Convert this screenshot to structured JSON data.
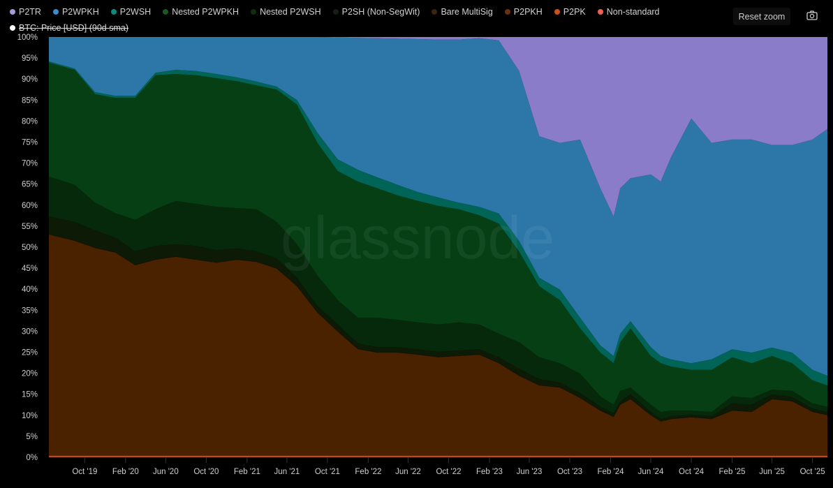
{
  "toolbar": {
    "reset_zoom_label": "Reset zoom",
    "camera_icon": "camera-icon"
  },
  "overlay_legend": {
    "label": "BTC: Price [USD] (90d sma)",
    "color": "#ffffff",
    "hidden": true
  },
  "chart_data": {
    "type": "area",
    "stacked": true,
    "watermark": "glassnode",
    "ylim": [
      0,
      100
    ],
    "y_ticks": [
      "0%",
      "5%",
      "10%",
      "15%",
      "20%",
      "25%",
      "30%",
      "35%",
      "40%",
      "45%",
      "50%",
      "55%",
      "60%",
      "65%",
      "70%",
      "75%",
      "80%",
      "85%",
      "90%",
      "95%",
      "100%"
    ],
    "x_range": [
      "2019-06-15",
      "2025-11-15"
    ],
    "x_ticks": [
      {
        "date": "2019-10-01",
        "label": "Oct '19"
      },
      {
        "date": "2020-02-01",
        "label": "Feb '20"
      },
      {
        "date": "2020-06-01",
        "label": "Jun '20"
      },
      {
        "date": "2020-10-01",
        "label": "Oct '20"
      },
      {
        "date": "2021-02-01",
        "label": "Feb '21"
      },
      {
        "date": "2021-06-01",
        "label": "Jun '21"
      },
      {
        "date": "2021-10-01",
        "label": "Oct '21"
      },
      {
        "date": "2022-02-01",
        "label": "Feb '22"
      },
      {
        "date": "2022-06-01",
        "label": "Jun '22"
      },
      {
        "date": "2022-10-01",
        "label": "Oct '22"
      },
      {
        "date": "2023-02-01",
        "label": "Feb '23"
      },
      {
        "date": "2023-06-01",
        "label": "Jun '23"
      },
      {
        "date": "2023-10-01",
        "label": "Oct '23"
      },
      {
        "date": "2024-02-01",
        "label": "Feb '24"
      },
      {
        "date": "2024-06-01",
        "label": "Jun '24"
      },
      {
        "date": "2024-10-01",
        "label": "Oct '24"
      },
      {
        "date": "2025-02-01",
        "label": "Feb '25"
      },
      {
        "date": "2025-06-01",
        "label": "Jun '25"
      },
      {
        "date": "2025-10-01",
        "label": "Oct '25"
      }
    ],
    "grid": false,
    "legend_position": "top-left",
    "x": [
      "2019-06-15",
      "2019-09-01",
      "2019-11-01",
      "2020-01-01",
      "2020-03-01",
      "2020-05-01",
      "2020-07-01",
      "2020-09-01",
      "2020-11-01",
      "2021-01-01",
      "2021-03-01",
      "2021-05-01",
      "2021-07-01",
      "2021-09-01",
      "2021-11-01",
      "2022-01-01",
      "2022-03-01",
      "2022-05-01",
      "2022-07-01",
      "2022-09-01",
      "2022-11-01",
      "2023-01-01",
      "2023-03-01",
      "2023-05-01",
      "2023-07-01",
      "2023-09-01",
      "2023-11-01",
      "2024-01-01",
      "2024-02-10",
      "2024-03-01",
      "2024-04-01",
      "2024-06-01",
      "2024-07-01",
      "2024-08-01",
      "2024-10-01",
      "2024-12-01",
      "2025-02-01",
      "2025-04-01",
      "2025-06-01",
      "2025-08-01",
      "2025-10-01",
      "2025-11-15"
    ],
    "series": [
      {
        "name": "Non-standard",
        "color": "#e86050",
        "legend_color": "#f06050",
        "values": [
          0.1,
          0.1,
          0.1,
          0.1,
          0.1,
          0.1,
          0.1,
          0.1,
          0.1,
          0.1,
          0.1,
          0.1,
          0.1,
          0.1,
          0.1,
          0.1,
          0.1,
          0.1,
          0.1,
          0.1,
          0.1,
          0.1,
          0.1,
          0.1,
          0.1,
          0.1,
          0.1,
          0.1,
          0.1,
          0.1,
          0.1,
          0.1,
          0.1,
          0.1,
          0.1,
          0.1,
          0.1,
          0.1,
          0.1,
          0.1,
          0.1,
          0.1
        ]
      },
      {
        "name": "P2PK",
        "color": "#b84a0a",
        "legend_color": "#d05010",
        "values": [
          0.3,
          0.3,
          0.3,
          0.3,
          0.3,
          0.3,
          0.3,
          0.3,
          0.3,
          0.3,
          0.3,
          0.3,
          0.3,
          0.3,
          0.3,
          0.3,
          0.3,
          0.3,
          0.3,
          0.3,
          0.3,
          0.3,
          0.3,
          0.3,
          0.3,
          0.3,
          0.3,
          0.3,
          0.3,
          0.3,
          0.3,
          0.3,
          0.3,
          0.3,
          0.3,
          0.3,
          0.3,
          0.3,
          0.3,
          0.3,
          0.3,
          0.3
        ]
      },
      {
        "name": "P2PKH",
        "color": "#4a2200",
        "legend_color": "#6a3010",
        "values": [
          52.6,
          51.1,
          49.4,
          48.3,
          45.3,
          46.6,
          47.3,
          46.6,
          45.9,
          46.6,
          46.1,
          44.5,
          40.3,
          34.0,
          29.5,
          25.3,
          24.5,
          24.5,
          24.0,
          23.4,
          23.7,
          24.0,
          22.0,
          19.0,
          16.7,
          16.2,
          13.7,
          10.7,
          9.2,
          12.1,
          13.4,
          9.6,
          8.1,
          8.7,
          9.1,
          8.7,
          10.7,
          10.4,
          13.4,
          12.9,
          10.4,
          9.6
        ]
      },
      {
        "name": "Bare MultiSig",
        "color": "#1e1408",
        "legend_color": "#3a2510",
        "values": [
          0.1,
          0.1,
          0.1,
          0.1,
          0.1,
          0.1,
          0.1,
          0.1,
          0.1,
          0.1,
          0.1,
          0.1,
          0.1,
          0.1,
          0.1,
          0.1,
          0.1,
          0.1,
          0.1,
          0.1,
          0.1,
          0.1,
          0.1,
          0.1,
          0.1,
          0.1,
          0.1,
          0.1,
          0.1,
          0.1,
          0.1,
          0.1,
          0.1,
          0.1,
          0.1,
          0.1,
          0.1,
          0.1,
          0.1,
          0.1,
          0.1,
          0.1
        ]
      },
      {
        "name": "P2SH (Non-SegWit)",
        "color": "#0c1a06",
        "legend_color": "#142010",
        "values": [
          4.2,
          4.4,
          4.1,
          3.5,
          3.2,
          3.2,
          2.9,
          3.2,
          2.9,
          2.6,
          2.4,
          2.3,
          1.9,
          1.5,
          1.6,
          1.3,
          1.2,
          1.2,
          1.2,
          1.2,
          1.2,
          1.2,
          1.3,
          1.6,
          1.4,
          1.1,
          1.1,
          0.9,
          0.8,
          0.7,
          1.1,
          0.7,
          0.5,
          0.6,
          0.5,
          0.6,
          1.6,
          1.6,
          1.1,
          0.9,
          0.7,
          0.7
        ]
      },
      {
        "name": "Nested P2WSH",
        "color": "#06290b",
        "legend_color": "#0d3010",
        "values": [
          9.5,
          8.8,
          6.6,
          5.8,
          7.5,
          8.7,
          10.3,
          10.0,
          10.3,
          9.6,
          10.0,
          8.7,
          8.0,
          7.2,
          5.8,
          6.1,
          7.0,
          6.5,
          6.4,
          6.5,
          6.7,
          5.9,
          5.6,
          6.3,
          5.2,
          4.6,
          4.6,
          2.4,
          2.0,
          2.5,
          1.6,
          1.7,
          1.7,
          1.3,
          1.0,
          1.0,
          1.7,
          1.6,
          1.1,
          1.5,
          1.2,
          1.2
        ]
      },
      {
        "name": "Nested P2WPKH",
        "color": "#063f14",
        "legend_color": "#1a5a22",
        "values": [
          27.1,
          27.4,
          25.8,
          27.4,
          29.0,
          31.9,
          30.2,
          30.6,
          30.6,
          30.2,
          29.5,
          31.5,
          33.2,
          31.6,
          30.7,
          32.4,
          30.8,
          29.6,
          28.9,
          28.2,
          26.9,
          26.0,
          26.2,
          21.6,
          16.9,
          15.0,
          10.8,
          10.4,
          9.9,
          11.6,
          14.1,
          11.6,
          11.6,
          10.5,
          9.7,
          10.0,
          9.3,
          8.3,
          8.0,
          6.6,
          5.5,
          5.1
        ]
      },
      {
        "name": "P2WSH",
        "color": "#006457",
        "legend_color": "#0f8a7a",
        "values": [
          0.3,
          0.3,
          0.5,
          0.5,
          0.5,
          0.6,
          1.0,
          1.0,
          1.0,
          0.9,
          0.9,
          0.7,
          1.1,
          2.4,
          2.8,
          2.8,
          2.6,
          2.5,
          2.1,
          2.0,
          1.6,
          2.0,
          2.4,
          2.5,
          2.0,
          2.5,
          2.5,
          1.7,
          1.7,
          2.0,
          1.7,
          2.1,
          1.7,
          1.7,
          1.6,
          2.5,
          1.9,
          2.5,
          2.0,
          2.5,
          2.5,
          2.3
        ]
      },
      {
        "name": "P2WPKH",
        "color": "#2c77a8",
        "legend_color": "#3a8ed0",
        "values": [
          5.8,
          7.5,
          13.1,
          14.0,
          14.0,
          8.5,
          7.8,
          8.1,
          8.8,
          9.6,
          10.6,
          11.8,
          15.0,
          22.8,
          29.0,
          31.4,
          33.1,
          34.8,
          36.4,
          37.6,
          38.8,
          40.1,
          41.2,
          40.5,
          33.7,
          34.9,
          42.4,
          37.4,
          33.2,
          34.6,
          34.0,
          41.1,
          41.5,
          48.1,
          58.2,
          51.5,
          49.9,
          50.7,
          48.2,
          49.4,
          54.8,
          58.7
        ]
      },
      {
        "name": "P2TR",
        "color": "#8a7cc8",
        "legend_color": "#a89ae0",
        "values": [
          0,
          0,
          0,
          0,
          0,
          0,
          0,
          0,
          0,
          0,
          0,
          0,
          0,
          0,
          0.1,
          0.2,
          0.3,
          0.4,
          0.5,
          0.6,
          0.6,
          0.3,
          0.8,
          8.0,
          23.6,
          25.2,
          24.4,
          36.0,
          42.7,
          36.0,
          33.6,
          32.7,
          34.4,
          28.6,
          19.4,
          25.2,
          24.4,
          24.4,
          25.7,
          25.7,
          24.4,
          21.9
        ]
      }
    ],
    "legend_order": [
      "P2TR",
      "P2WPKH",
      "P2WSH",
      "Nested P2WPKH",
      "Nested P2WSH",
      "P2SH (Non-SegWit)",
      "Bare MultiSig",
      "P2PKH",
      "P2PK",
      "Non-standard"
    ]
  }
}
